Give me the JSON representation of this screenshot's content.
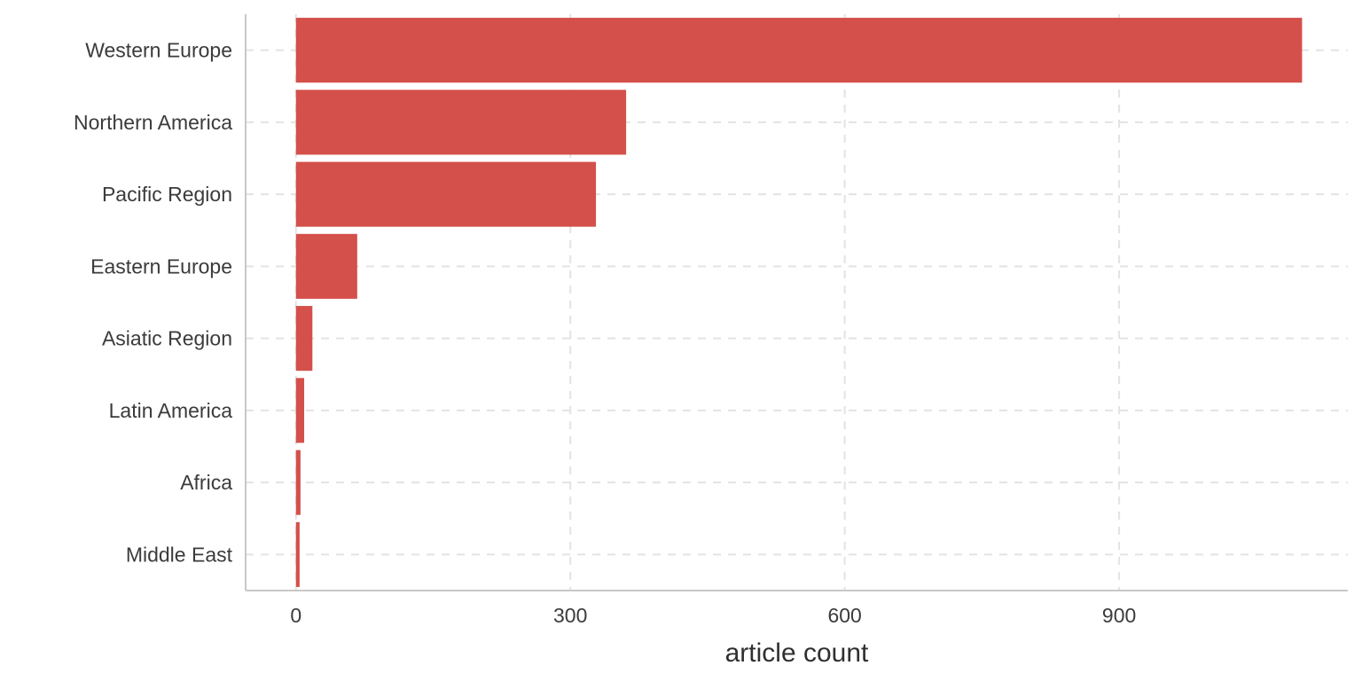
{
  "chart_data": {
    "type": "bar",
    "orientation": "horizontal",
    "title": "",
    "xlabel": "article count",
    "ylabel": "",
    "categories": [
      "Western Europe",
      "Northern America",
      "Pacific Region",
      "Eastern Europe",
      "Asiatic Region",
      "Latin America",
      "Africa",
      "Middle East"
    ],
    "values": [
      1100,
      361,
      328,
      67,
      18,
      9,
      5,
      4
    ],
    "xlim": [
      -55,
      1150
    ],
    "xticks": [
      0,
      300,
      600,
      900
    ],
    "xtick_labels": [
      "0",
      "300",
      "600",
      "900"
    ],
    "grid": true,
    "legend": "none",
    "bar_color": "#d4504a",
    "grid_color": "#e3e3e3",
    "axis_color": "#c8c8c8"
  }
}
